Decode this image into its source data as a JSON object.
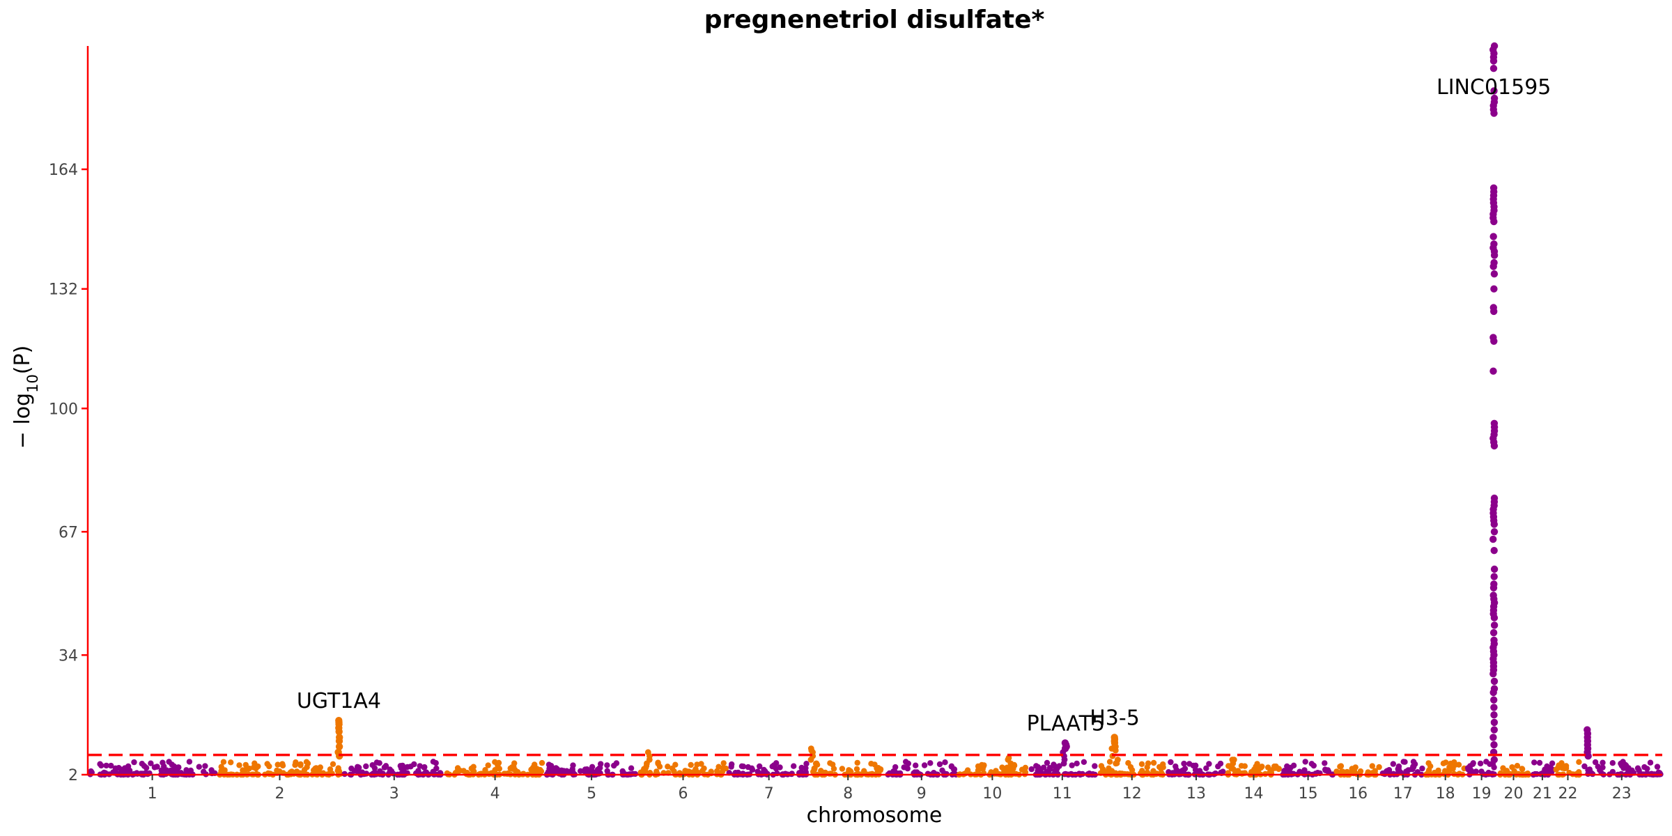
{
  "chart_data": {
    "type": "scatter",
    "subtype": "manhattan",
    "title": "pregnenetriol disulfate*",
    "xlabel": "chromosome",
    "ylabel": "−log10(P)",
    "ylabel_parts": {
      "prefix": "− log",
      "subscript": "10",
      "suffix": "(P)"
    },
    "yticks": [
      2,
      34,
      67,
      100,
      132,
      164
    ],
    "ylim": [
      2,
      197
    ],
    "significance_threshold": 7.3,
    "colors": {
      "odd": "#8B008B",
      "even": "#EE7600",
      "threshold": "#FF0000",
      "axis": "#FF0000"
    },
    "grid": false,
    "legend": "none",
    "chromosomes": [
      {
        "label": "1",
        "length": 248
      },
      {
        "label": "2",
        "length": 242
      },
      {
        "label": "3",
        "length": 198
      },
      {
        "label": "4",
        "length": 190
      },
      {
        "label": "5",
        "length": 181
      },
      {
        "label": "6",
        "length": 171
      },
      {
        "label": "7",
        "length": 159
      },
      {
        "label": "8",
        "length": 145
      },
      {
        "label": "9",
        "length": 138
      },
      {
        "label": "10",
        "length": 134
      },
      {
        "label": "11",
        "length": 135
      },
      {
        "label": "12",
        "length": 133
      },
      {
        "label": "13",
        "length": 114
      },
      {
        "label": "14",
        "length": 107
      },
      {
        "label": "15",
        "length": 102
      },
      {
        "label": "16",
        "length": 90
      },
      {
        "label": "17",
        "length": 83
      },
      {
        "label": "18",
        "length": 80
      },
      {
        "label": "19",
        "length": 59
      },
      {
        "label": "20",
        "length": 64
      },
      {
        "label": "21",
        "length": 47
      },
      {
        "label": "22",
        "length": 51
      },
      {
        "label": "23",
        "length": 156
      }
    ],
    "baseline_max": 5.5,
    "local_bumps": [
      {
        "chr": "6",
        "pos": 0.1,
        "values": [
          5,
          6,
          7,
          8
        ]
      },
      {
        "chr": "8",
        "pos": 0.05,
        "values": [
          5,
          6,
          7,
          8,
          8.5,
          9
        ]
      },
      {
        "chr": "10",
        "pos": 0.75,
        "values": [
          5,
          6,
          6.5
        ]
      },
      {
        "chr": "11",
        "pos": 0.55,
        "values": [
          5,
          6,
          7,
          8
        ]
      },
      {
        "chr": "12",
        "pos": 0.25,
        "values": [
          5,
          6,
          7,
          8.5,
          9
        ]
      },
      {
        "chr": "14",
        "pos": 0.1,
        "values": [
          5,
          6,
          6
        ]
      }
    ],
    "peaks": [
      {
        "chr": "2",
        "pos": 0.97,
        "gene": "UGT1A4",
        "values": [
          7,
          8,
          9.5,
          11,
          12,
          13.5,
          14.5,
          15.5,
          16,
          16.5
        ]
      },
      {
        "chr": "11",
        "pos": 0.55,
        "gene": "PLAAT5",
        "values": [
          9,
          9.5,
          10,
          10.5
        ]
      },
      {
        "chr": "12",
        "pos": 0.25,
        "gene": "H3-5",
        "values": [
          9.5,
          10.5,
          11,
          11.5,
          12
        ]
      },
      {
        "chr": "19",
        "pos": 0.9,
        "gene": "LINC01595",
        "values": [
          6,
          8,
          10,
          12,
          14,
          16,
          18,
          20,
          22,
          24,
          25,
          27,
          29,
          30,
          31,
          32,
          33,
          34,
          35,
          36,
          37,
          38,
          40,
          42,
          44,
          45,
          46,
          47,
          48,
          49,
          50,
          52,
          53,
          55,
          57,
          62,
          65,
          67,
          69,
          70,
          71,
          72,
          73,
          74,
          75,
          76,
          90,
          91,
          92,
          93,
          94,
          95,
          96,
          110,
          118,
          119,
          126,
          127,
          132,
          136,
          138,
          139,
          141,
          142,
          143,
          144,
          146,
          150,
          151,
          152,
          153,
          154,
          155,
          156,
          157,
          158,
          159,
          179,
          180,
          181,
          182,
          183,
          185,
          191,
          193,
          194,
          195,
          196,
          197
        ]
      },
      {
        "chr": "23",
        "pos": 0.08,
        "values": [
          7,
          8,
          9,
          10,
          11,
          12,
          13,
          14
        ]
      }
    ]
  }
}
